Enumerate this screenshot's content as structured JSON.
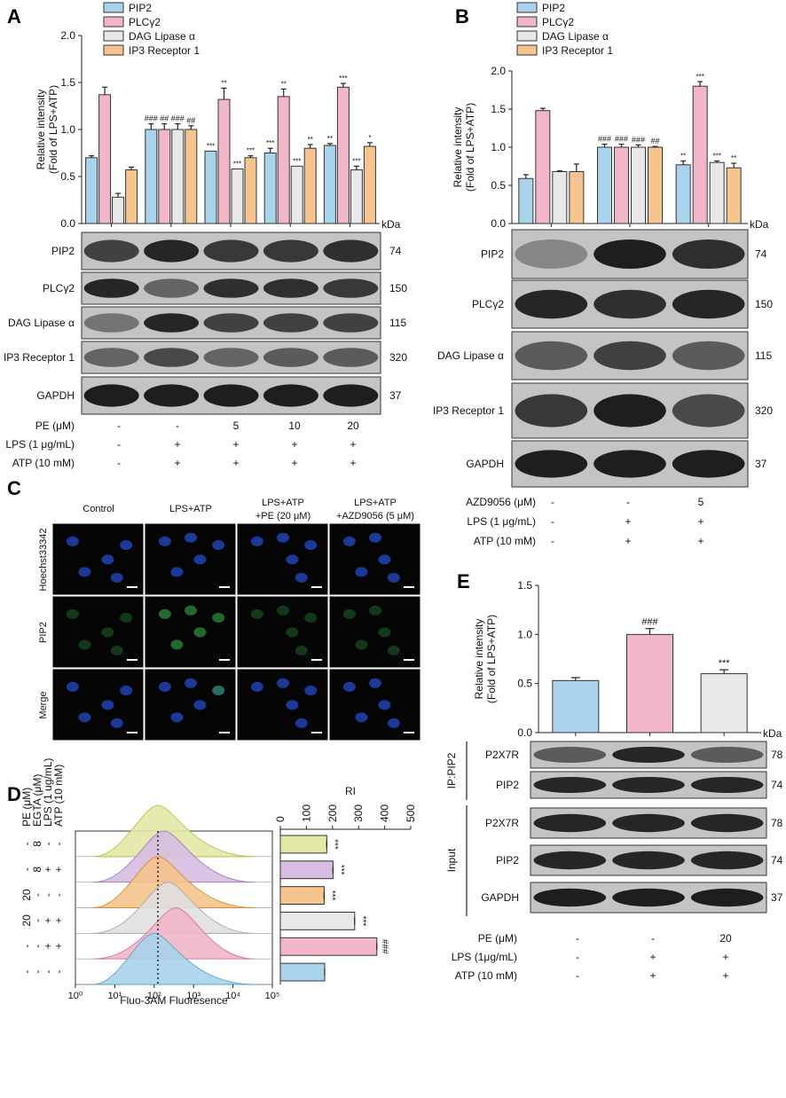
{
  "panel_labels": {
    "A": "A",
    "B": "B",
    "C": "C",
    "D": "D",
    "E": "E"
  },
  "colors": {
    "PIP2": "#a9d3ea",
    "PLCg2": "#f1b7c9",
    "DAG": "#e8e8e8",
    "IP3R1": "#f6c48f",
    "edge": "#333333",
    "blot_bg": "#bdbdbd",
    "band": "#1a1a1a"
  },
  "chart_data": [
    {
      "panel": "A",
      "type": "bar",
      "ylabel": "Relative intensity",
      "ylabel2": "(Fold of LPS+ATP)",
      "ylim": [
        0,
        2.0
      ],
      "yticks": [
        "0.0",
        "0.5",
        "1.0",
        "1.5",
        "2.0"
      ],
      "kda": "kDa",
      "groups": 5,
      "series": [
        {
          "name": "PIP2",
          "color": "#a9d3ea",
          "values": [
            0.7,
            1.0,
            0.77,
            0.75,
            0.83
          ],
          "errors": [
            0.02,
            0.06,
            0.0,
            0.05,
            0.02
          ],
          "marks": [
            "",
            "###",
            "***",
            "***",
            "**"
          ]
        },
        {
          "name": "PLCγ2",
          "color": "#f1b7c9",
          "values": [
            1.37,
            1.0,
            1.32,
            1.35,
            1.45
          ],
          "errors": [
            0.08,
            0.06,
            0.12,
            0.08,
            0.04
          ],
          "marks": [
            "",
            "##",
            "**",
            "**",
            "***"
          ]
        },
        {
          "name": "DAG Lipase α",
          "color": "#e8e8e8",
          "values": [
            0.28,
            1.0,
            0.58,
            0.61,
            0.57
          ],
          "errors": [
            0.04,
            0.06,
            0.0,
            0.0,
            0.04
          ],
          "marks": [
            "",
            "###",
            "***",
            "***",
            "***"
          ]
        },
        {
          "name": "IP3 Receptor 1",
          "color": "#f6c48f",
          "values": [
            0.57,
            1.0,
            0.7,
            0.8,
            0.82
          ],
          "errors": [
            0.03,
            0.04,
            0.02,
            0.04,
            0.04
          ],
          "marks": [
            "",
            "##",
            "***",
            "**",
            "*"
          ]
        }
      ]
    },
    {
      "panel": "B",
      "type": "bar",
      "ylabel": "Relative intensity",
      "ylabel2": "(Fold of LPS+ATP)",
      "ylim": [
        0,
        2.0
      ],
      "yticks": [
        "0.0",
        "0.5",
        "1.0",
        "1.5",
        "2.0"
      ],
      "kda": "kDa",
      "groups": 3,
      "series": [
        {
          "name": "PIP2",
          "color": "#a9d3ea",
          "values": [
            0.59,
            1.0,
            0.77
          ],
          "errors": [
            0.05,
            0.04,
            0.05
          ],
          "marks": [
            "",
            "###",
            "**"
          ]
        },
        {
          "name": "PLCγ2",
          "color": "#f1b7c9",
          "values": [
            1.48,
            1.0,
            1.8
          ],
          "errors": [
            0.03,
            0.04,
            0.06
          ],
          "marks": [
            "",
            "###",
            "***"
          ]
        },
        {
          "name": "DAG Lipase α",
          "color": "#e8e8e8",
          "values": [
            0.68,
            1.0,
            0.8
          ],
          "errors": [
            0.01,
            0.03,
            0.02
          ],
          "marks": [
            "",
            "###",
            "***"
          ]
        },
        {
          "name": "IP3 Receptor 1",
          "color": "#f6c48f",
          "values": [
            0.68,
            1.0,
            0.73
          ],
          "errors": [
            0.1,
            0.01,
            0.06
          ],
          "marks": [
            "",
            "##",
            "**"
          ]
        }
      ]
    },
    {
      "panel": "D",
      "type": "bar",
      "xlabel": "RI",
      "xlim": [
        0,
        500
      ],
      "xticks": [
        "0",
        "100",
        "200",
        "300",
        "400",
        "500"
      ],
      "values": [
        178,
        202,
        168,
        285,
        370,
        170
      ],
      "colors": [
        "#e4e8a6",
        "#d7bde2",
        "#f6c48f",
        "#e8e8e8",
        "#f1b7c9",
        "#a9d3ea"
      ],
      "marks": [
        "***",
        "***",
        "***",
        "***",
        "###",
        ""
      ]
    },
    {
      "panel": "E",
      "type": "bar",
      "ylabel": "Relative intensity",
      "ylabel2": "(Fold of LPS+ATP)",
      "ylim": [
        0,
        1.5
      ],
      "yticks": [
        "0.0",
        "0.5",
        "1.0",
        "1.5"
      ],
      "kda": "kDa",
      "values": [
        0.53,
        1.0,
        0.6
      ],
      "errors": [
        0.03,
        0.06,
        0.04
      ],
      "colors": [
        "#a9d3ea",
        "#f1b7c9",
        "#e8e8e8"
      ],
      "marks": [
        "",
        "###",
        "***"
      ]
    }
  ],
  "panel_A": {
    "blots": [
      {
        "label": "PIP2",
        "kda": "74"
      },
      {
        "label": "PLCγ2",
        "kda": "150"
      },
      {
        "label": "DAG Lipase α",
        "kda": "115"
      },
      {
        "label": "IP3 Receptor 1",
        "kda": "320"
      },
      {
        "label": "GAPDH",
        "kda": "37"
      }
    ],
    "conditions": [
      {
        "label": "PE (μM)",
        "values": [
          "-",
          "-",
          "5",
          "10",
          "20"
        ]
      },
      {
        "label": "LPS (1 μg/mL)",
        "values": [
          "-",
          "+",
          "+",
          "+",
          "+"
        ]
      },
      {
        "label": "ATP (10 mM)",
        "values": [
          "-",
          "+",
          "+",
          "+",
          "+"
        ]
      }
    ]
  },
  "panel_B": {
    "blots": [
      {
        "label": "PIP2",
        "kda": "74"
      },
      {
        "label": "PLCγ2",
        "kda": "150"
      },
      {
        "label": "DAG Lipase α",
        "kda": "115"
      },
      {
        "label": "IP3 Receptor 1",
        "kda": "320"
      },
      {
        "label": "GAPDH",
        "kda": "37"
      }
    ],
    "conditions": [
      {
        "label": "AZD9056 (μM)",
        "values": [
          "-",
          "-",
          "5"
        ]
      },
      {
        "label": "LPS (1 μg/mL)",
        "values": [
          "-",
          "+",
          "+"
        ]
      },
      {
        "label": "ATP (10 mM)",
        "values": [
          "-",
          "+",
          "+"
        ]
      }
    ]
  },
  "panel_C": {
    "columns": [
      "Control",
      "LPS+ATP",
      "LPS+ATP",
      "LPS+ATP"
    ],
    "columns_line2": [
      "",
      "",
      "+PE (20 μM)",
      "+AZD9056 (5 μM)"
    ],
    "rows": [
      "Hoechst33342",
      "PIP2",
      "Merge"
    ]
  },
  "panel_D": {
    "xlabel": "Fluo-3AM Fluoresence",
    "x_ticks": [
      "10⁰",
      "10¹",
      "10²",
      "10³",
      "10⁴",
      "10⁵"
    ],
    "row_headers": [
      "PE (μM)",
      "EGTA (μM)",
      "LPS (1 ug/mL)",
      "ATP (10 mM)"
    ],
    "rows": [
      [
        "-",
        "8",
        "-",
        "-"
      ],
      [
        "-",
        "8",
        "+",
        "+"
      ],
      [
        "20",
        "-",
        "-",
        "-"
      ],
      [
        "20",
        "-",
        "+",
        "+"
      ],
      [
        "-",
        "-",
        "+",
        "+"
      ],
      [
        "-",
        "-",
        "-",
        "-"
      ]
    ]
  },
  "panel_E": {
    "ip_label": "IP:PIP2",
    "input_label": "Input",
    "ip_blots": [
      {
        "label": "P2X7R",
        "kda": "78"
      },
      {
        "label": "PIP2",
        "kda": "74"
      }
    ],
    "input_blots": [
      {
        "label": "P2X7R",
        "kda": "78"
      },
      {
        "label": "PIP2",
        "kda": "74"
      },
      {
        "label": "GAPDH",
        "kda": "37"
      }
    ],
    "conditions": [
      {
        "label": "PE (μM)",
        "values": [
          "-",
          "-",
          "20"
        ]
      },
      {
        "label": "LPS (1μg/mL)",
        "values": [
          "-",
          "+",
          "+"
        ]
      },
      {
        "label": "ATP (10 mM)",
        "values": [
          "-",
          "+",
          "+"
        ]
      }
    ]
  }
}
